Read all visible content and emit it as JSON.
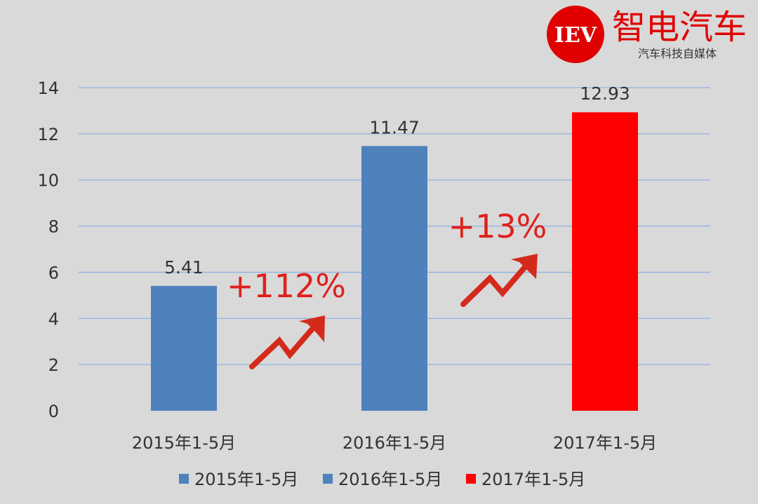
{
  "brand": {
    "badge_text": "IEV",
    "name": "智电汽车",
    "tagline": "汽车科技自媒体",
    "badge_color": "#e00000",
    "name_color": "#e00000"
  },
  "chart_data": {
    "type": "bar",
    "categories": [
      "2015年1-5月",
      "2016年1-5月",
      "2017年1-5月"
    ],
    "values": [
      5.41,
      11.47,
      12.93
    ],
    "value_labels": [
      "5.41",
      "11.47",
      "12.93"
    ],
    "bar_colors": [
      "#4f81bd",
      "#4f81bd",
      "#ff0000"
    ],
    "ylim": [
      0,
      14
    ],
    "yticks": [
      0,
      2,
      4,
      6,
      8,
      10,
      12,
      14
    ],
    "grid": true,
    "legend": [
      {
        "label": "2015年1-5月",
        "color": "#4f81bd"
      },
      {
        "label": "2016年1-5月",
        "color": "#4f81bd"
      },
      {
        "label": "2017年1-5月",
        "color": "#ff0000"
      }
    ],
    "legend_position": "bottom",
    "annotations": [
      {
        "text": "+112%",
        "color": "#e0201c"
      },
      {
        "text": "+13%",
        "color": "#e0201c"
      }
    ]
  },
  "colors": {
    "background": "#d9d9d9",
    "gridline": "#8eb4e3",
    "text": "#333333",
    "arrow": "#d42a1c"
  }
}
